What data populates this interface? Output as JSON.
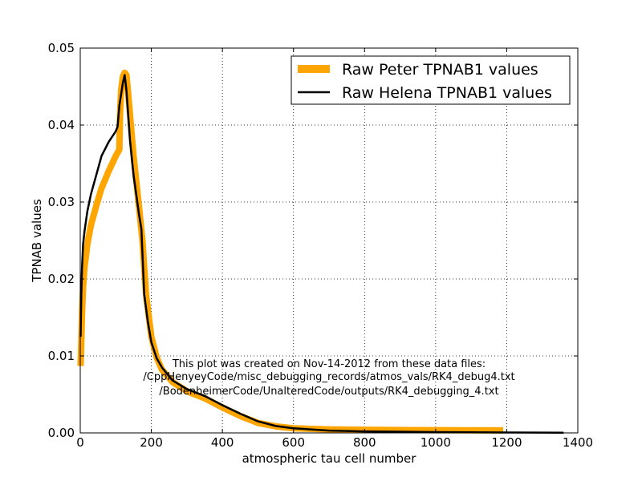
{
  "chart_data": {
    "type": "line",
    "title": "",
    "xlabel": "atmospheric tau cell number",
    "ylabel": "TPNAB values",
    "xlim": [
      0,
      1400
    ],
    "ylim": [
      0,
      0.05
    ],
    "x_ticks": [
      0,
      200,
      400,
      600,
      800,
      1000,
      1200,
      1400
    ],
    "y_ticks": [
      0.0,
      0.01,
      0.02,
      0.03,
      0.04,
      0.05
    ],
    "x_tick_labels": [
      "0",
      "200",
      "400",
      "600",
      "800",
      "1000",
      "1200",
      "1400"
    ],
    "y_tick_labels": [
      "0.00",
      "0.01",
      "0.02",
      "0.03",
      "0.04",
      "0.05"
    ],
    "grid": true,
    "legend_position": "top-right",
    "series": [
      {
        "name": "Raw Peter TPNAB1 values",
        "color": "#ffa500",
        "style": "thick",
        "points": [
          [
            1,
            0.0087
          ],
          [
            3,
            0.012
          ],
          [
            5,
            0.0155
          ],
          [
            8,
            0.019
          ],
          [
            12,
            0.0215
          ],
          [
            20,
            0.0245
          ],
          [
            30,
            0.027
          ],
          [
            45,
            0.0295
          ],
          [
            60,
            0.0318
          ],
          [
            80,
            0.034
          ],
          [
            100,
            0.036
          ],
          [
            110,
            0.0368
          ],
          [
            112,
            0.0415
          ],
          [
            115,
            0.0445
          ],
          [
            120,
            0.0463
          ],
          [
            125,
            0.0468
          ],
          [
            130,
            0.0465
          ],
          [
            135,
            0.044
          ],
          [
            150,
            0.036
          ],
          [
            165,
            0.0295
          ],
          [
            175,
            0.025
          ],
          [
            185,
            0.018
          ],
          [
            200,
            0.0125
          ],
          [
            215,
            0.0098
          ],
          [
            230,
            0.0082
          ],
          [
            260,
            0.0066
          ],
          [
            300,
            0.0054
          ],
          [
            350,
            0.0045
          ],
          [
            400,
            0.0033
          ],
          [
            450,
            0.0022
          ],
          [
            500,
            0.0013
          ],
          [
            550,
            0.00085
          ],
          [
            600,
            0.0006
          ],
          [
            700,
            0.00045
          ],
          [
            800,
            0.0004
          ],
          [
            1000,
            0.00035
          ],
          [
            1190,
            0.00033
          ]
        ]
      },
      {
        "name": "Raw Helena TPNAB1 values",
        "color": "#000000",
        "style": "thin",
        "points": [
          [
            1,
            0.0125
          ],
          [
            3,
            0.018
          ],
          [
            5,
            0.0215
          ],
          [
            8,
            0.0245
          ],
          [
            12,
            0.0262
          ],
          [
            20,
            0.0288
          ],
          [
            30,
            0.031
          ],
          [
            45,
            0.0335
          ],
          [
            60,
            0.036
          ],
          [
            80,
            0.0378
          ],
          [
            100,
            0.0392
          ],
          [
            105,
            0.0398
          ],
          [
            110,
            0.0425
          ],
          [
            115,
            0.044
          ],
          [
            120,
            0.0455
          ],
          [
            125,
            0.0465
          ],
          [
            130,
            0.0445
          ],
          [
            140,
            0.038
          ],
          [
            150,
            0.0335
          ],
          [
            165,
            0.0285
          ],
          [
            172,
            0.0265
          ],
          [
            180,
            0.018
          ],
          [
            190,
            0.0145
          ],
          [
            200,
            0.0118
          ],
          [
            215,
            0.0097
          ],
          [
            230,
            0.0085
          ],
          [
            260,
            0.0068
          ],
          [
            300,
            0.0057
          ],
          [
            350,
            0.0048
          ],
          [
            400,
            0.0036
          ],
          [
            450,
            0.0025
          ],
          [
            500,
            0.0015
          ],
          [
            550,
            0.0009
          ],
          [
            600,
            0.0006
          ],
          [
            700,
            0.0003
          ],
          [
            800,
            0.0002
          ],
          [
            1000,
            0.0001
          ],
          [
            1200,
            5e-05
          ],
          [
            1360,
            3e-05
          ]
        ]
      }
    ],
    "annotation": [
      "This plot was created on Nov-14-2012 from these data files:",
      "/CppHenyeyCode/misc_debugging_records/atmos_vals/RK4_debug4.txt",
      "/BodenheimerCode/UnalteredCode/outputs/RK4_debugging_4.txt"
    ]
  }
}
